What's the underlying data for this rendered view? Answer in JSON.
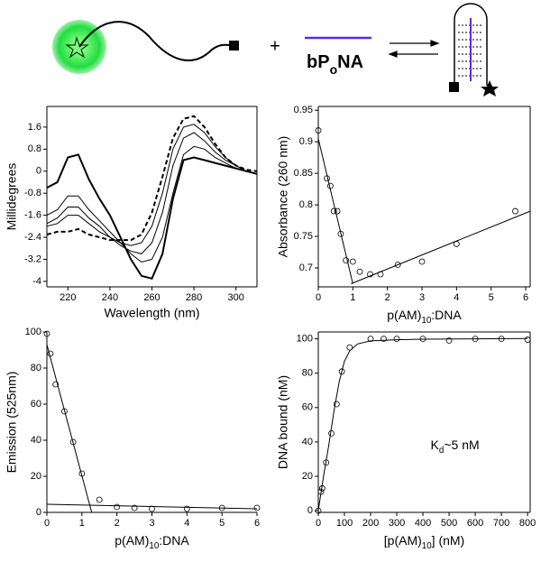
{
  "schematic": {
    "plus": "+",
    "label": [
      "bP",
      "o",
      "NA"
    ]
  },
  "chart_data": [
    {
      "type": "line",
      "xlabel": "Wavelength (nm)",
      "ylabel": "Millidegrees",
      "frame": true,
      "xlim": [
        210,
        310
      ],
      "ylim": [
        -4.2,
        2.35
      ],
      "xticks": [
        220,
        240,
        260,
        280,
        300
      ],
      "yticks": [
        1.6,
        0.8,
        0,
        -0.8,
        -1.6,
        -2.4,
        -3.2,
        -4
      ],
      "x": [
        210,
        215,
        220,
        225,
        230,
        235,
        240,
        245,
        250,
        255,
        260,
        265,
        270,
        275,
        280,
        285,
        290,
        295,
        300,
        305,
        310
      ],
      "series": [
        {
          "color": "#000000",
          "width": 2,
          "dash": false,
          "values": [
            -0.6,
            -0.4,
            0.5,
            0.6,
            -0.3,
            -1.0,
            -1.6,
            -2.4,
            -3.2,
            -3.8,
            -3.9,
            -3.0,
            -1.0,
            0.4,
            0.5,
            0.4,
            0.3,
            0.2,
            0.1,
            0.0,
            -0.1
          ]
        },
        {
          "color": "#000000",
          "width": 1,
          "dash": false,
          "values": [
            -1.6,
            -1.4,
            -0.9,
            -0.9,
            -1.4,
            -1.8,
            -2.2,
            -2.6,
            -3.0,
            -3.3,
            -3.2,
            -2.4,
            -0.8,
            0.6,
            0.9,
            0.8,
            0.5,
            0.3,
            0.1,
            0.0,
            -0.1
          ]
        },
        {
          "color": "#000000",
          "width": 1,
          "dash": false,
          "values": [
            -1.9,
            -1.7,
            -1.3,
            -1.3,
            -1.7,
            -2.0,
            -2.4,
            -2.7,
            -2.9,
            -3.0,
            -2.6,
            -1.5,
            0.2,
            1.2,
            1.4,
            1.1,
            0.7,
            0.4,
            0.2,
            0.0,
            -0.1
          ]
        },
        {
          "color": "#000000",
          "width": 1,
          "dash": false,
          "values": [
            -2.0,
            -1.9,
            -1.6,
            -1.6,
            -1.9,
            -2.2,
            -2.4,
            -2.6,
            -2.7,
            -2.6,
            -2.0,
            -0.8,
            0.8,
            1.6,
            1.7,
            1.4,
            0.9,
            0.5,
            0.2,
            0.0,
            -0.1
          ]
        },
        {
          "color": "#000000",
          "width": 2,
          "dash": true,
          "values": [
            -2.3,
            -2.2,
            -2.2,
            -2.1,
            -2.3,
            -2.4,
            -2.5,
            -2.5,
            -2.5,
            -2.3,
            -1.5,
            -0.2,
            1.2,
            1.9,
            2.0,
            1.6,
            1.0,
            0.5,
            0.2,
            0.05,
            0
          ]
        }
      ]
    },
    {
      "type": "scatter",
      "xlabel": [
        "p(AM)",
        "10",
        ":DNA"
      ],
      "ylabel": "Absorbance (260 nm)",
      "frame": true,
      "xlim": [
        0,
        6.13
      ],
      "ylim": [
        0.67,
        0.956
      ],
      "xticks": [
        0,
        1,
        2,
        3,
        4,
        5,
        6
      ],
      "yticks": [
        0.7,
        0.75,
        0.8,
        0.85,
        0.9,
        0.95
      ],
      "x": [
        0,
        0.25,
        0.35,
        0.45,
        0.55,
        0.65,
        0.8,
        1.0,
        1.2,
        1.5,
        1.8,
        2.3,
        3,
        4,
        5.7
      ],
      "values": [
        0.918,
        0.842,
        0.83,
        0.79,
        0.79,
        0.754,
        0.712,
        0.71,
        0.694,
        0.69,
        0.69,
        0.705,
        0.71,
        0.738,
        0.79
      ],
      "fits": [
        {
          "x": [
            0,
            1
          ],
          "values": [
            0.905,
            0.675
          ]
        },
        {
          "x": [
            0.95,
            6.13
          ],
          "values": [
            0.675,
            0.79
          ]
        }
      ]
    },
    {
      "type": "scatter",
      "xlabel": [
        "p(AM)",
        "10",
        ":DNA"
      ],
      "ylabel": "Emission (525nm)",
      "frame": false,
      "xlim": [
        0,
        6
      ],
      "ylim": [
        0,
        100
      ],
      "xticks": [
        0,
        1,
        2,
        3,
        4,
        5,
        6
      ],
      "yticks": [
        0,
        20,
        40,
        60,
        80,
        100
      ],
      "x": [
        0,
        0.1,
        0.25,
        0.5,
        0.75,
        1.0,
        1.5,
        2,
        2.5,
        3,
        4,
        5,
        6
      ],
      "values": [
        99,
        88,
        71,
        56,
        39,
        21.5,
        7,
        3,
        2.5,
        2,
        2,
        2.5,
        2.5
      ],
      "fits": [
        {
          "x": [
            0,
            1.28
          ],
          "values": [
            93,
            0
          ]
        },
        {
          "x": [
            0,
            6
          ],
          "values": [
            4.5,
            2
          ]
        }
      ]
    },
    {
      "type": "scatter",
      "xlabel": [
        "[p(AM)",
        "10",
        "] (nM)"
      ],
      "ylabel": "DNA bound (nM)",
      "frame": true,
      "annotation": [
        "K",
        "d",
        "~5 nM"
      ],
      "xlim": [
        0,
        810
      ],
      "ylim": [
        -1,
        104
      ],
      "xticks": [
        0,
        100,
        200,
        300,
        400,
        500,
        600,
        700,
        800
      ],
      "yticks": [
        0,
        20,
        40,
        60,
        80,
        100
      ],
      "x": [
        0,
        10,
        15,
        30,
        50,
        70,
        90,
        120,
        200,
        250,
        300,
        400,
        500,
        600,
        700,
        800
      ],
      "values": [
        0,
        11,
        13,
        28,
        45,
        62,
        81,
        95,
        100,
        100,
        100,
        100,
        99,
        100,
        100,
        99.5
      ],
      "fits": [
        {
          "x": [
            0,
            20,
            40,
            60,
            80,
            100,
            120,
            150,
            200,
            300,
            400,
            600,
            800
          ],
          "values": [
            0,
            20,
            38,
            58,
            75,
            87,
            93,
            97,
            98.8,
            99.5,
            99.8,
            100,
            100.2
          ]
        }
      ]
    }
  ]
}
